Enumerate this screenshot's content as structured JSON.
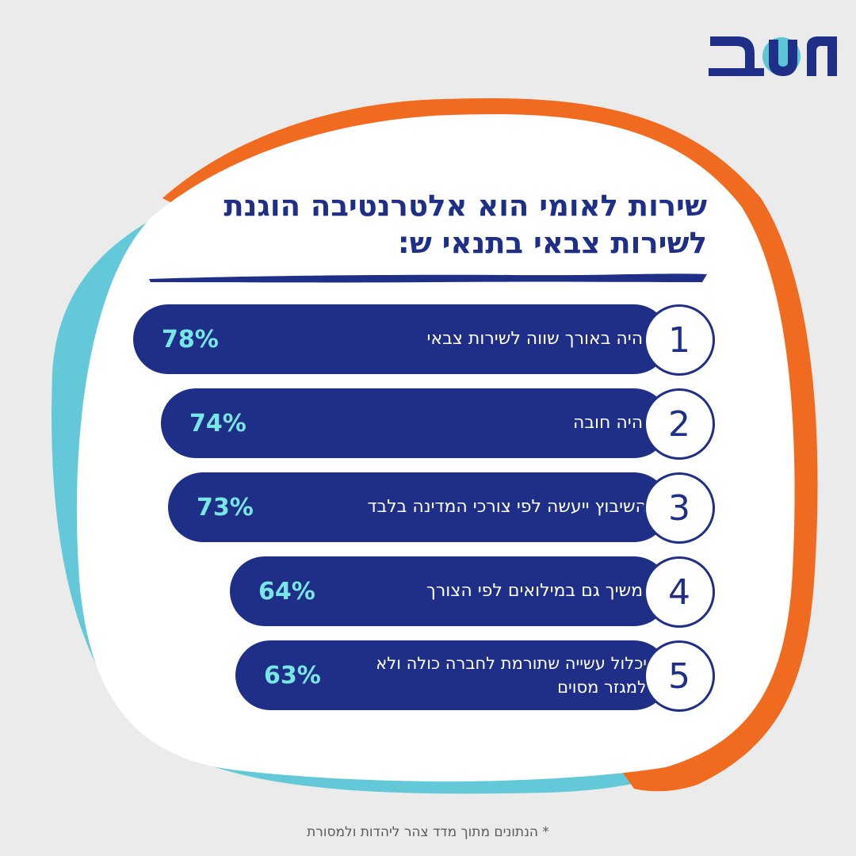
{
  "logo": {
    "text": "משב",
    "color_primary": "#1f2f87",
    "color_accent": "#5cc6d6"
  },
  "colors": {
    "navy": "#1f2f87",
    "orange": "#f06a1f",
    "teal": "#63c9d9",
    "percent": "#79e6e6",
    "background": "#ebebeb"
  },
  "title": {
    "line1": "שירות לאומי הוא אלטרנטיבה הוגנת",
    "line2": "לשירות צבאי בתנאי ש:"
  },
  "footnote": "* הנתונים מתוך מדד צהר ליהדות ולמסורת",
  "chart_data": {
    "type": "bar",
    "orientation": "horizontal",
    "categories": [
      "יהיה באורך שווה לשירות צבאי",
      "יהיה חובה",
      "השיבוץ ייעשה לפי צורכי המדינה בלבד",
      "ימשיך גם במילואים לפי הצורך",
      "יכלול עשייה שתורמת לחברה כולה ולא למגזר מסוים"
    ],
    "ranks": [
      "1",
      "2",
      "3",
      "4",
      "5"
    ],
    "values": [
      78,
      74,
      73,
      64,
      63
    ],
    "value_labels": [
      "78%",
      "74%",
      "73%",
      "64%",
      "63%"
    ]
  }
}
